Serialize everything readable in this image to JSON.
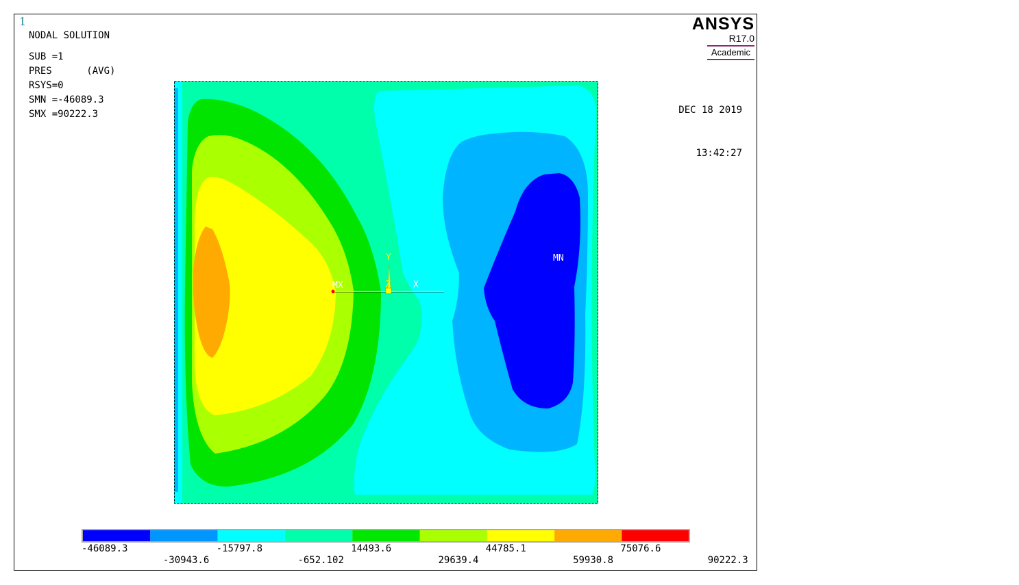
{
  "window": {
    "number": "1"
  },
  "info": {
    "lines": [
      "NODAL SOLUTION",
      "SUB =1",
      "PRES      (AVG)",
      "RSYS=0",
      "SMN =-46089.3",
      "SMX =90222.3"
    ]
  },
  "logo": {
    "title": "ANSYS",
    "release": "R17.0",
    "edition": "Academic"
  },
  "timestamp": {
    "date": "DEC 18 2019",
    "time": "13:42:27"
  },
  "plot": {
    "labels": {
      "max": "MX",
      "min": "MN"
    },
    "triad": {
      "x": "X",
      "y": "Y",
      "z": "Z"
    }
  },
  "legend": {
    "colors": [
      "#0000ff",
      "#0096ff",
      "#00ffff",
      "#00ffaa",
      "#00e800",
      "#aaff00",
      "#ffff00",
      "#ffaa00",
      "#ff0000"
    ],
    "top_labels": [
      "-46089.3",
      "-15797.8",
      "14493.6",
      "44785.1",
      "75076.6"
    ],
    "bottom_labels": [
      "-30943.6",
      "-652.102",
      "29639.4",
      "59930.8",
      "90222.3"
    ]
  },
  "colors": {
    "level_0": "#0000ff",
    "level_1": "#00b4ff",
    "level_2": "#00ffff",
    "level_3": "#00ffaa",
    "level_4": "#00e400",
    "level_5": "#aaff00",
    "level_6": "#ffff00",
    "level_7": "#ffaa00"
  }
}
